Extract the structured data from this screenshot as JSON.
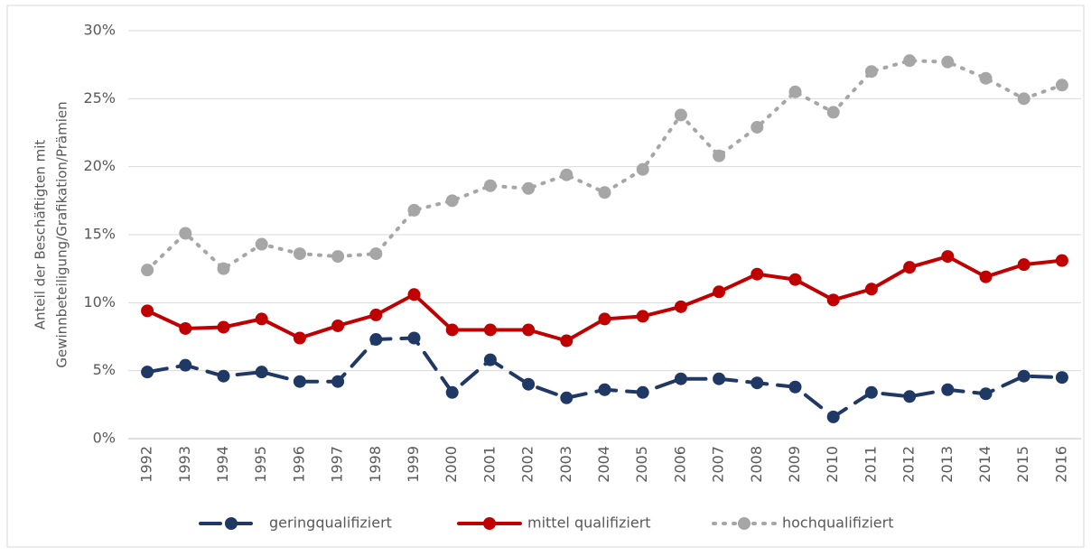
{
  "chart_data": {
    "type": "line",
    "y_label": [
      "Anteil der Beschäftigten mit",
      "Gewinnbeteiligung/Grafikation/Prämien"
    ],
    "categories": [
      "1992",
      "1993",
      "1994",
      "1995",
      "1996",
      "1997",
      "1998",
      "1999",
      "2000",
      "2001",
      "2002",
      "2003",
      "2004",
      "2005",
      "2006",
      "2007",
      "2008",
      "2009",
      "2010",
      "2011",
      "2012",
      "2013",
      "2014",
      "2015",
      "2016"
    ],
    "series": [
      {
        "name": "geringqualifiziert",
        "color": "#203864",
        "line_style": "dashed",
        "values": [
          4.9,
          5.4,
          4.6,
          4.9,
          4.2,
          4.2,
          7.3,
          7.4,
          3.4,
          5.8,
          4.0,
          3.0,
          3.6,
          3.4,
          4.4,
          4.4,
          4.1,
          3.8,
          1.6,
          3.4,
          3.1,
          3.6,
          3.3,
          4.6,
          4.5
        ]
      },
      {
        "name": "mittel qualifiziert",
        "color": "#c00000",
        "line_style": "solid",
        "values": [
          9.4,
          8.1,
          8.2,
          8.8,
          7.4,
          8.3,
          9.1,
          10.6,
          8.0,
          8.0,
          8.0,
          7.2,
          8.8,
          9.0,
          9.7,
          10.8,
          12.1,
          11.7,
          10.2,
          11.0,
          12.6,
          13.4,
          11.9,
          12.8,
          13.1
        ]
      },
      {
        "name": "hochqualifiziert",
        "color": "#a6a6a6",
        "line_style": "dotted",
        "values": [
          12.4,
          15.1,
          12.5,
          14.3,
          13.6,
          13.4,
          13.6,
          16.8,
          17.5,
          18.6,
          18.4,
          19.4,
          18.1,
          19.8,
          23.8,
          20.8,
          22.9,
          25.5,
          24.0,
          27.0,
          27.8,
          27.7,
          26.5,
          25.0,
          26.0
        ]
      }
    ],
    "ylim": [
      0,
      30
    ],
    "yticks": [
      {
        "value": 0,
        "label": "0%"
      },
      {
        "value": 5,
        "label": "5%"
      },
      {
        "value": 10,
        "label": "10%"
      },
      {
        "value": 15,
        "label": "15%"
      },
      {
        "value": 20,
        "label": "20%"
      },
      {
        "value": 25,
        "label": "25%"
      },
      {
        "value": 30,
        "label": "30%"
      }
    ],
    "grid": true,
    "legend": "bottom"
  }
}
